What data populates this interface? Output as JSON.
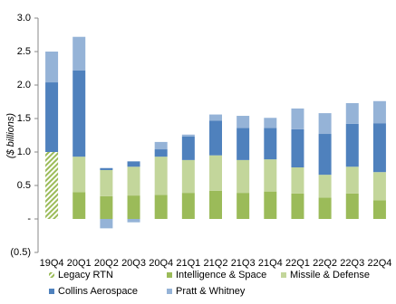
{
  "chart_data": {
    "type": "stacked_bar",
    "y_label": "($ billions)",
    "categories": [
      "19Q4",
      "20Q1",
      "20Q2",
      "20Q3",
      "20Q4",
      "21Q1",
      "21Q2",
      "21Q3",
      "21Q4",
      "22Q1",
      "22Q2",
      "22Q3",
      "22Q4"
    ],
    "series": [
      {
        "name": "Legacy RTN",
        "color": "#9bbb59",
        "pattern": "hatch",
        "values": [
          1.0,
          null,
          null,
          null,
          null,
          null,
          null,
          null,
          null,
          null,
          null,
          null,
          null
        ]
      },
      {
        "name": "Intelligence & Space",
        "color": "#9bbb59",
        "values": [
          null,
          0.4,
          0.34,
          0.35,
          0.36,
          0.39,
          0.42,
          0.39,
          0.41,
          0.38,
          0.32,
          0.38,
          0.28
        ]
      },
      {
        "name": "Missile & Defense",
        "color": "#c3d69b",
        "values": [
          null,
          0.53,
          0.39,
          0.43,
          0.57,
          0.49,
          0.53,
          0.49,
          0.48,
          0.39,
          0.34,
          0.4,
          0.42
        ]
      },
      {
        "name": "Collins Aerospace",
        "color": "#4f81bd",
        "values": [
          1.04,
          1.29,
          0.03,
          0.08,
          0.11,
          0.35,
          0.52,
          0.48,
          0.47,
          0.57,
          0.61,
          0.64,
          0.73
        ]
      },
      {
        "name": "Pratt & Whitney",
        "color": "#95b3d7",
        "values": [
          0.46,
          0.5,
          -0.14,
          -0.05,
          0.11,
          0.03,
          0.09,
          0.18,
          0.15,
          0.31,
          0.31,
          0.31,
          0.33
        ]
      }
    ],
    "ylim": [
      -0.5,
      3.0
    ],
    "yticks": [
      {
        "value": -0.5,
        "label": "(0.5)"
      },
      {
        "value": 0,
        "label": "-"
      },
      {
        "value": 0.5,
        "label": "0.5"
      },
      {
        "value": 1.0,
        "label": "1.0"
      },
      {
        "value": 1.5,
        "label": "1.5"
      },
      {
        "value": 2.0,
        "label": "2.0"
      },
      {
        "value": 2.5,
        "label": "2.5"
      },
      {
        "value": 3.0,
        "label": "3.0"
      }
    ],
    "grid": false,
    "legend": "bottom"
  }
}
